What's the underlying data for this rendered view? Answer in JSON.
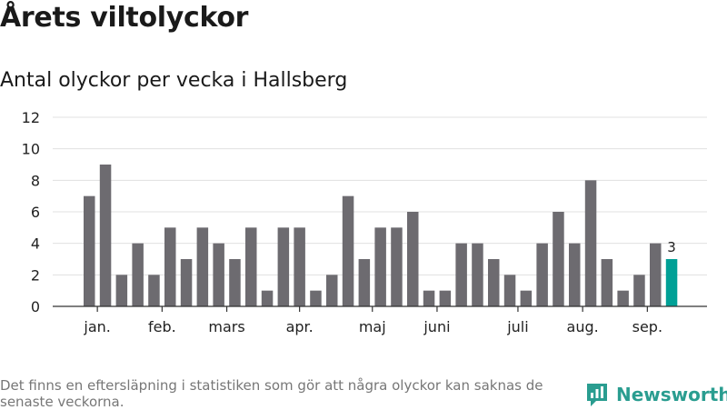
{
  "title": "Årets viltolyckor",
  "subtitle": "Antal olyckor per vecka i Hallsberg",
  "footnote": "Det finns en eftersläpning i statistiken som gör att några olyckor kan saknas de senaste veckorna.",
  "brand": {
    "name": "Newsworthy",
    "logo_icon": "bar-chart-speech-bubble-icon",
    "color": "#2a9d90"
  },
  "colors": {
    "bar": "#6d6b70",
    "highlight": "#00a096",
    "grid": "#e0e0e0",
    "axis": "#333333"
  },
  "chart_data": {
    "type": "bar",
    "title": "Antal olyckor per vecka i Hallsberg",
    "xlabel": "",
    "ylabel": "",
    "ylim": [
      0,
      12
    ],
    "yticks": [
      0,
      2,
      4,
      6,
      8,
      10,
      12
    ],
    "grid": true,
    "values": [
      7,
      9,
      2,
      4,
      2,
      5,
      3,
      5,
      4,
      3,
      5,
      1,
      5,
      5,
      1,
      2,
      7,
      3,
      5,
      5,
      6,
      1,
      1,
      4,
      4,
      3,
      2,
      1,
      4,
      6,
      4,
      8,
      3,
      1,
      2,
      4,
      3
    ],
    "highlight_index": 36,
    "highlight_label": "3",
    "month_labels": [
      {
        "label": "jan.",
        "bar_index": 0.5
      },
      {
        "label": "feb.",
        "bar_index": 4.5
      },
      {
        "label": "mars",
        "bar_index": 8.5
      },
      {
        "label": "apr.",
        "bar_index": 13
      },
      {
        "label": "maj",
        "bar_index": 17.5
      },
      {
        "label": "juni",
        "bar_index": 21.5
      },
      {
        "label": "juli",
        "bar_index": 26.5
      },
      {
        "label": "aug.",
        "bar_index": 30.5
      },
      {
        "label": "sep.",
        "bar_index": 34.5
      }
    ]
  }
}
